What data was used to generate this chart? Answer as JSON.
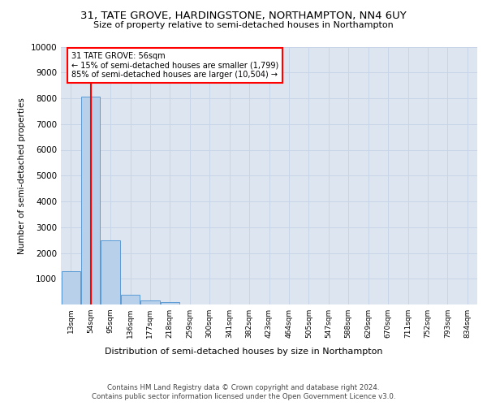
{
  "title1": "31, TATE GROVE, HARDINGSTONE, NORTHAMPTON, NN4 6UY",
  "title2": "Size of property relative to semi-detached houses in Northampton",
  "xlabel": "Distribution of semi-detached houses by size in Northampton",
  "ylabel": "Number of semi-detached properties",
  "footnote1": "Contains HM Land Registry data © Crown copyright and database right 2024.",
  "footnote2": "Contains public sector information licensed under the Open Government Licence v3.0.",
  "bin_labels": [
    "13sqm",
    "54sqm",
    "95sqm",
    "136sqm",
    "177sqm",
    "218sqm",
    "259sqm",
    "300sqm",
    "341sqm",
    "382sqm",
    "423sqm",
    "464sqm",
    "505sqm",
    "547sqm",
    "588sqm",
    "629sqm",
    "670sqm",
    "711sqm",
    "752sqm",
    "793sqm",
    "834sqm"
  ],
  "bar_values": [
    1300,
    8050,
    2500,
    380,
    150,
    100,
    0,
    0,
    0,
    0,
    0,
    0,
    0,
    0,
    0,
    0,
    0,
    0,
    0,
    0,
    0
  ],
  "bar_color": "#b8d0ea",
  "bar_edge_color": "#5b9bd5",
  "annotation_text": "31 TATE GROVE: 56sqm\n← 15% of semi-detached houses are smaller (1,799)\n85% of semi-detached houses are larger (10,504) →",
  "annotation_box_color": "white",
  "annotation_box_edge": "red",
  "vline_color": "red",
  "ylim": [
    0,
    10000
  ],
  "yticks": [
    0,
    1000,
    2000,
    3000,
    4000,
    5000,
    6000,
    7000,
    8000,
    9000,
    10000
  ],
  "grid_color": "#c8d4e8",
  "background_color": "#dde6f0"
}
